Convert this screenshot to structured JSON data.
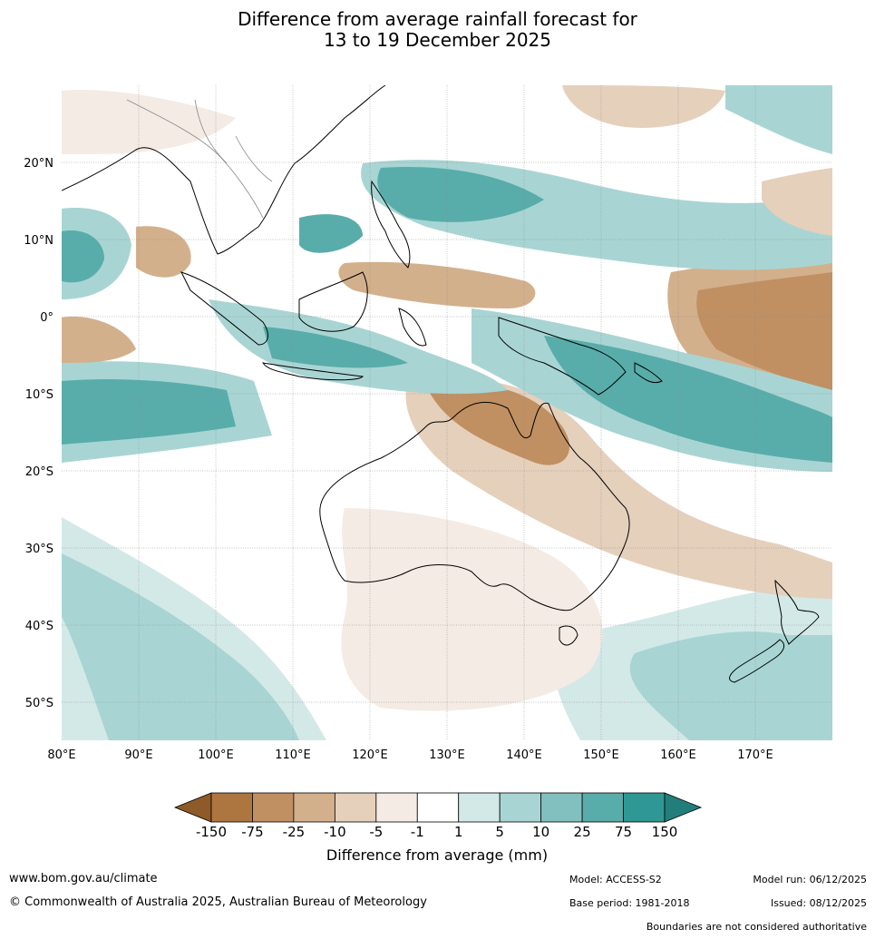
{
  "title_line1": "Difference from average rainfall forecast for",
  "title_line2": "13 to 19 December 2025",
  "map": {
    "lon_labels": [
      "80°E",
      "90°E",
      "100°E",
      "110°E",
      "120°E",
      "130°E",
      "140°E",
      "150°E",
      "160°E",
      "170°E"
    ],
    "lat_labels": [
      "20°N",
      "10°N",
      "0°",
      "10°S",
      "20°S",
      "30°S",
      "40°S",
      "50°S"
    ],
    "lon_range": [
      80,
      180
    ],
    "lat_range": [
      -55,
      30
    ]
  },
  "legend": {
    "title": "Difference from average (mm)",
    "ticks": [
      "-150",
      "-75",
      "-25",
      "-10",
      "-5",
      "-1",
      "1",
      "5",
      "10",
      "25",
      "75",
      "150"
    ],
    "colors": [
      "#8e5a28",
      "#ad7640",
      "#c09062",
      "#d3b08c",
      "#e5d0bc",
      "#f4ebe4",
      "#ffffff",
      "#d3e9e8",
      "#a8d5d3",
      "#82c0bf",
      "#58adab",
      "#2f9894",
      "#227e7b"
    ]
  },
  "footer": {
    "website": "www.bom.gov.au/climate",
    "copyright": "© Commonwealth of Australia 2025, Australian Bureau of Meteorology",
    "model": "Model: ACCESS-S2",
    "base_period": "Base period: 1981-2018",
    "model_run": "Model run: 06/12/2025",
    "issued": "Issued: 08/12/2025",
    "boundaries": "Boundaries are not considered authoritative"
  }
}
